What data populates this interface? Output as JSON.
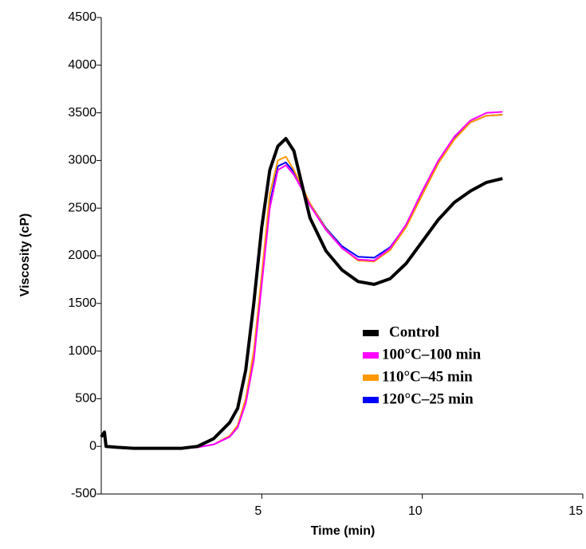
{
  "chart_data": {
    "type": "line",
    "xlabel": "Time (min)",
    "ylabel": "Viscosity (cP)",
    "x": [
      0,
      0.1,
      0.15,
      0.5,
      1,
      2,
      2.5,
      3,
      3.5,
      4,
      4.25,
      4.5,
      4.75,
      5,
      5.25,
      5.5,
      5.75,
      6,
      6.25,
      6.5,
      7,
      7.5,
      8,
      8.5,
      9,
      9.5,
      10,
      10.5,
      11,
      11.5,
      12,
      12.5
    ],
    "series": [
      {
        "name": "Control",
        "color": "#000000",
        "values": [
          100,
          150,
          0,
          -10,
          -20,
          -20,
          -20,
          0,
          80,
          250,
          400,
          800,
          1500,
          2300,
          2900,
          3150,
          3230,
          3100,
          2750,
          2400,
          2050,
          1850,
          1730,
          1700,
          1760,
          1920,
          2150,
          2380,
          2560,
          2680,
          2770,
          2810
        ]
      },
      {
        "name": "100°C–100 min",
        "color": "#ff00ff",
        "values": [
          100,
          150,
          0,
          -10,
          -20,
          -20,
          -20,
          -10,
          20,
          100,
          200,
          450,
          900,
          1700,
          2500,
          2900,
          2950,
          2850,
          2700,
          2530,
          2270,
          2080,
          1960,
          1950,
          2080,
          2330,
          2680,
          3000,
          3250,
          3420,
          3500,
          3510
        ]
      },
      {
        "name": "110°C–45 min",
        "color": "#ff9900",
        "values": [
          100,
          150,
          0,
          -10,
          -20,
          -20,
          -20,
          -10,
          20,
          110,
          220,
          500,
          1000,
          1800,
          2650,
          3000,
          3040,
          2900,
          2730,
          2550,
          2280,
          2080,
          1950,
          1940,
          2060,
          2300,
          2640,
          2970,
          3220,
          3400,
          3470,
          3480
        ]
      },
      {
        "name": "120°C–25 min",
        "color": "#0000ff",
        "values": [
          100,
          150,
          0,
          -10,
          -20,
          -20,
          -20,
          -10,
          20,
          100,
          200,
          460,
          920,
          1720,
          2550,
          2940,
          2980,
          2880,
          2720,
          2550,
          2290,
          2100,
          1990,
          1980,
          2090,
          2320,
          2660,
          2990,
          3230,
          3400,
          3470,
          3480
        ]
      }
    ],
    "xlim": [
      0,
      15
    ],
    "xticks": [
      5,
      10,
      15
    ],
    "ylim": [
      -500,
      4500
    ],
    "yticks": [
      -500,
      0,
      500,
      1000,
      1500,
      2000,
      2500,
      3000,
      3500,
      4000,
      4500
    ],
    "grid": false
  }
}
